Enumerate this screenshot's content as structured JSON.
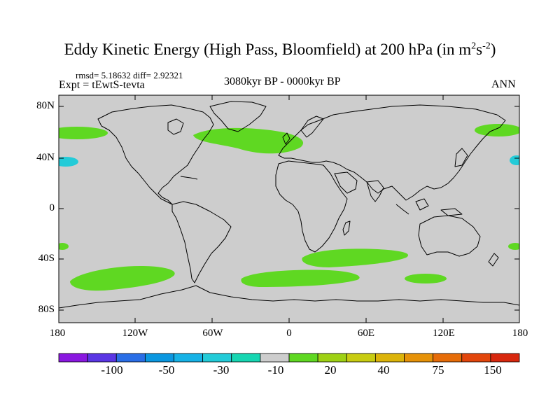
{
  "title": {
    "main": "Eddy Kinetic Energy (High Pass, Bloomfield) at 200 hPa (in m",
    "sup1": "2",
    "mid": "s",
    "sup2": "-2",
    "close": ")"
  },
  "stats_text": "rmsd= 5.18632  diff= 2.92321",
  "experiment_text": "Expt = tEwtS-tevta",
  "period_text": "3080kyr BP - 0000kyr BP",
  "season_text": "ANN",
  "lat_labels": [
    "80N",
    "40N",
    "0",
    "40S",
    "80S"
  ],
  "lon_labels": [
    "180",
    "120W",
    "60W",
    "0",
    "60E",
    "120E",
    "180"
  ],
  "colorbar": {
    "colors": [
      "#8a18e0",
      "#5a36e4",
      "#2a6ee6",
      "#0b97e0",
      "#16b2e6",
      "#23cbd8",
      "#16d6b2",
      "#cdcdcd",
      "#5fd822",
      "#9ed114",
      "#c8cc12",
      "#dcb40a",
      "#e69208",
      "#e66c08",
      "#e2460c",
      "#d8280e"
    ],
    "labels": [
      "-100",
      "-50",
      "-30",
      "-10",
      "20",
      "40",
      "75",
      "150"
    ]
  },
  "colors": {
    "background": "#cdcdcd",
    "positive_anomaly": "#5fd822",
    "negative_anomaly": "#23cbd8"
  }
}
